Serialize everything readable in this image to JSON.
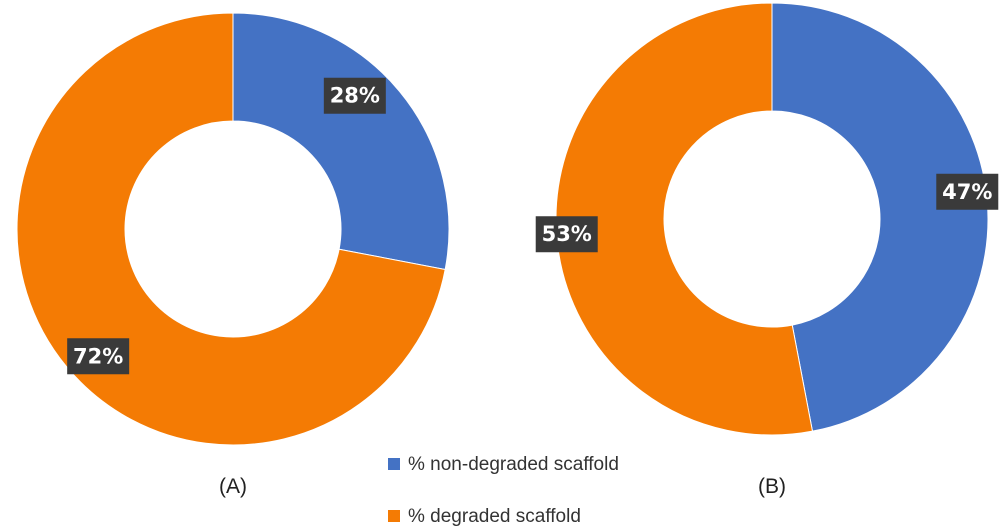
{
  "chart_data": [
    {
      "type": "pie",
      "panel_label": "(A)",
      "slices": [
        {
          "label": "% non-degraded scaffold",
          "value": 28,
          "value_label": "28%",
          "color": "#4472C4"
        },
        {
          "label": "% degraded scaffold",
          "value": 72,
          "value_label": "72%",
          "color": "#F47B04"
        }
      ]
    },
    {
      "type": "pie",
      "panel_label": "(B)",
      "slices": [
        {
          "label": "% non-degraded scaffold",
          "value": 47,
          "value_label": "47%",
          "color": "#4472C4"
        },
        {
          "label": "% degraded scaffold",
          "value": 53,
          "value_label": "53%",
          "color": "#F47B04"
        }
      ]
    }
  ],
  "legend": {
    "placement": "bottom-center",
    "items": [
      {
        "label": "% non-degraded scaffold",
        "color": "#4472C4"
      },
      {
        "label": "% degraded scaffold",
        "color": "#F47B04"
      }
    ]
  }
}
